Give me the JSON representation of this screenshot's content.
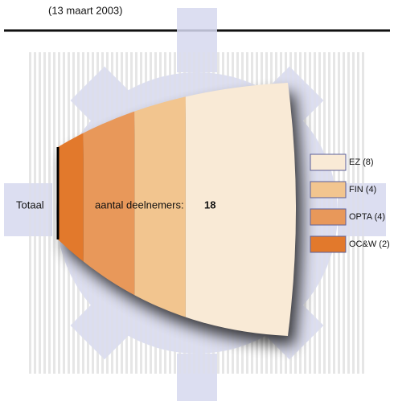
{
  "date": "(13 maart 2003)",
  "chart_data": {
    "type": "funnel",
    "total_label": "Totaal",
    "count_label": "aantal deelnemers:",
    "total": 18,
    "categories": [
      "EZ (8)",
      "FIN (4)",
      "OPTA (4)",
      "OC&W (2)"
    ],
    "values": [
      8,
      4,
      4,
      2
    ],
    "colors": [
      "#f9ead6",
      "#f2c58f",
      "#e8985a",
      "#e2792c"
    ]
  }
}
